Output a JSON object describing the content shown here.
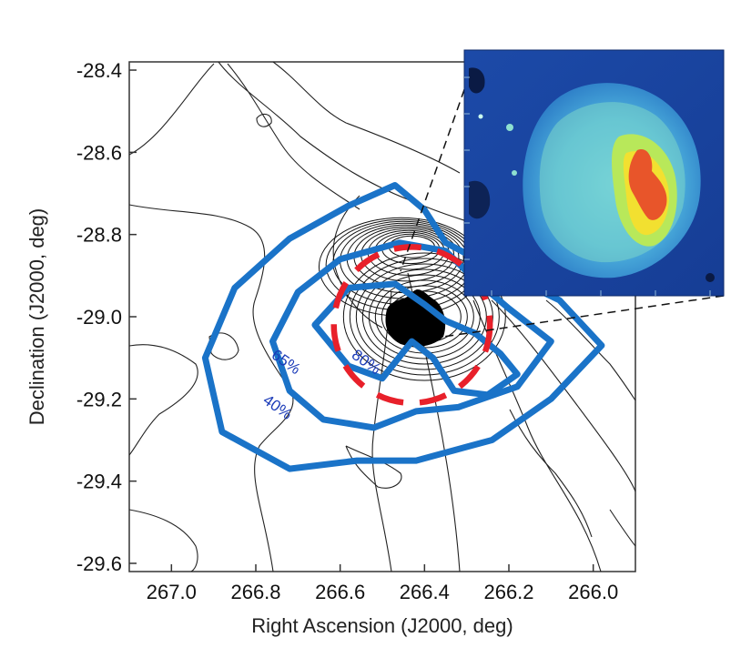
{
  "chart_data": {
    "type": "contour",
    "xlabel": "Right Ascension (J2000, deg)",
    "ylabel": "Declination (J2000, deg)",
    "xlim": [
      267.1,
      265.9
    ],
    "ylim": [
      -29.62,
      -28.38
    ],
    "x_ticks": [
      267.0,
      266.8,
      266.6,
      266.4,
      266.2,
      266.0
    ],
    "x_tick_labels": [
      "267.0",
      "266.8",
      "266.6",
      "266.4",
      "266.2",
      "266.0"
    ],
    "y_ticks": [
      -28.4,
      -28.6,
      -28.8,
      -29.0,
      -29.2,
      -29.4,
      -29.6
    ],
    "y_tick_labels": [
      "-28.4",
      "-28.6",
      "-28.8",
      "-29.0",
      "-29.2",
      "-29.4",
      "-29.6"
    ],
    "grid": false,
    "colors": {
      "confidence_contours": "#1a73c8",
      "dashed_circle": "#e8202a",
      "background_contours": "#222222",
      "percent_labels": "#1a3ab8"
    },
    "annotations": [
      {
        "text": "65%",
        "ra": 266.735,
        "dec": -29.12
      },
      {
        "text": "80%",
        "ra": 266.545,
        "dec": -29.12
      },
      {
        "text": "40%",
        "ra": 266.755,
        "dec": -29.23
      }
    ],
    "confidence_contours": [
      {
        "level": "40%",
        "points": [
          [
            266.58,
            -28.73
          ],
          [
            266.47,
            -28.68
          ],
          [
            266.4,
            -28.74
          ],
          [
            266.35,
            -28.82
          ],
          [
            266.22,
            -28.89
          ],
          [
            266.08,
            -28.96
          ],
          [
            265.98,
            -29.07
          ],
          [
            266.1,
            -29.2
          ],
          [
            266.24,
            -29.3
          ],
          [
            266.42,
            -29.35
          ],
          [
            266.56,
            -29.35
          ],
          [
            266.72,
            -29.37
          ],
          [
            266.88,
            -29.28
          ],
          [
            266.92,
            -29.1
          ],
          [
            266.85,
            -28.93
          ],
          [
            266.72,
            -28.81
          ]
        ]
      },
      {
        "level": "65%",
        "points": [
          [
            266.6,
            -28.86
          ],
          [
            266.46,
            -28.82
          ],
          [
            266.35,
            -28.84
          ],
          [
            266.28,
            -28.91
          ],
          [
            266.2,
            -28.98
          ],
          [
            266.1,
            -29.06
          ],
          [
            266.18,
            -29.17
          ],
          [
            266.32,
            -29.22
          ],
          [
            266.42,
            -29.23
          ],
          [
            266.52,
            -29.27
          ],
          [
            266.64,
            -29.25
          ],
          [
            266.72,
            -29.18
          ],
          [
            266.76,
            -29.06
          ],
          [
            266.7,
            -28.94
          ]
        ]
      },
      {
        "level": "80%",
        "points": [
          [
            266.58,
            -28.93
          ],
          [
            266.47,
            -28.92
          ],
          [
            266.4,
            -28.97
          ],
          [
            266.35,
            -29.01
          ],
          [
            266.28,
            -29.04
          ],
          [
            266.22,
            -29.09
          ],
          [
            266.18,
            -29.14
          ],
          [
            266.25,
            -29.19
          ],
          [
            266.33,
            -29.18
          ],
          [
            266.38,
            -29.1
          ],
          [
            266.43,
            -29.06
          ],
          [
            266.5,
            -29.15
          ],
          [
            266.58,
            -29.12
          ],
          [
            266.66,
            -29.02
          ]
        ]
      }
    ],
    "dashed_circle": {
      "center": [
        266.43,
        -29.02
      ],
      "radius_deg": 0.185
    }
  }
}
